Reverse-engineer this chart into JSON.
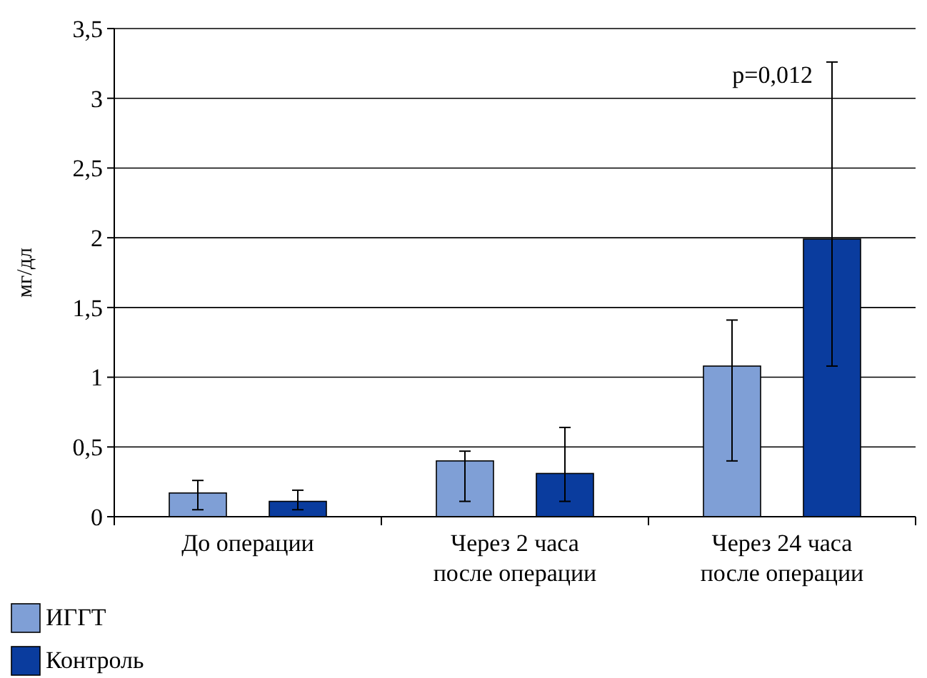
{
  "chart_data": {
    "type": "bar",
    "ylabel": "мг/дл",
    "categories": [
      "До операции",
      "Через 2 часа\nпосле операции",
      "Через 24 часа\nпосле операции"
    ],
    "series": [
      {
        "name": "ИГГТ",
        "color": "#7f9fd6",
        "values": [
          0.17,
          0.4,
          1.08
        ],
        "errors": [
          [
            0.05,
            0.26
          ],
          [
            0.11,
            0.47
          ],
          [
            0.4,
            1.41
          ]
        ]
      },
      {
        "name": "Контроль",
        "color": "#0a3c9e",
        "values": [
          0.11,
          0.31,
          1.99
        ],
        "errors": [
          [
            0.05,
            0.19
          ],
          [
            0.11,
            0.64
          ],
          [
            1.08,
            3.26
          ]
        ]
      }
    ],
    "ylim": [
      0,
      3.5
    ],
    "yticks": [
      0,
      {
        "value": 0.5,
        "label": "0,5"
      },
      1,
      {
        "value": 1.5,
        "label": "1,5"
      },
      2,
      {
        "value": 2.5,
        "label": "2,5"
      },
      3,
      {
        "value": 3.5,
        "label": "3,5"
      }
    ],
    "grid": "y",
    "legend": "bottom left",
    "annotations": [
      "p=0,012"
    ]
  }
}
